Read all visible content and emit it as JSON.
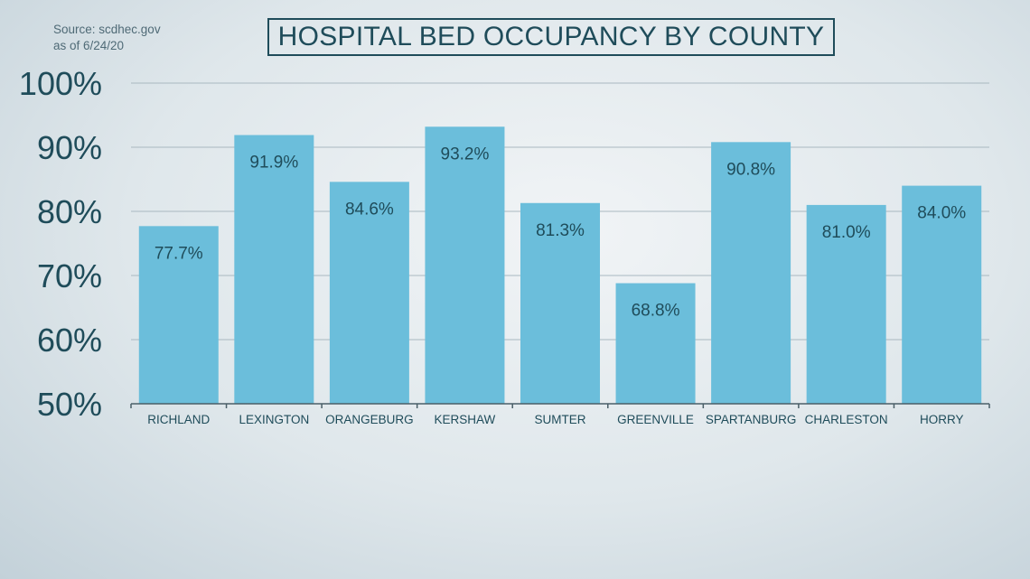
{
  "source": {
    "line1": "Source: scdhec.gov",
    "line2": "as of 6/24/20"
  },
  "chart_data": {
    "type": "bar",
    "title": "HOSPITAL BED OCCUPANCY BY COUNTY",
    "categories": [
      "RICHLAND",
      "LEXINGTON",
      "ORANGEBURG",
      "KERSHAW",
      "SUMTER",
      "GREENVILLE",
      "SPARTANBURG",
      "CHARLESTON",
      "HORRY"
    ],
    "values": [
      77.7,
      91.9,
      84.6,
      93.2,
      81.3,
      68.8,
      90.8,
      81.0,
      84.0
    ],
    "data_labels": [
      "77.7%",
      "91.9%",
      "84.6%",
      "93.2%",
      "81.3%",
      "68.8%",
      "90.8%",
      "81.0%",
      "84.0%"
    ],
    "ylim": [
      50,
      100
    ],
    "yticks": [
      50,
      60,
      70,
      80,
      90,
      100
    ],
    "ytick_labels": [
      "50%",
      "60%",
      "70%",
      "80%",
      "90%",
      "100%"
    ],
    "grid": true,
    "xlabel": "",
    "ylabel": "",
    "colors": {
      "bar": "#6bbedb",
      "text": "#1f4c5a",
      "grid": "#a9b8c0"
    }
  }
}
